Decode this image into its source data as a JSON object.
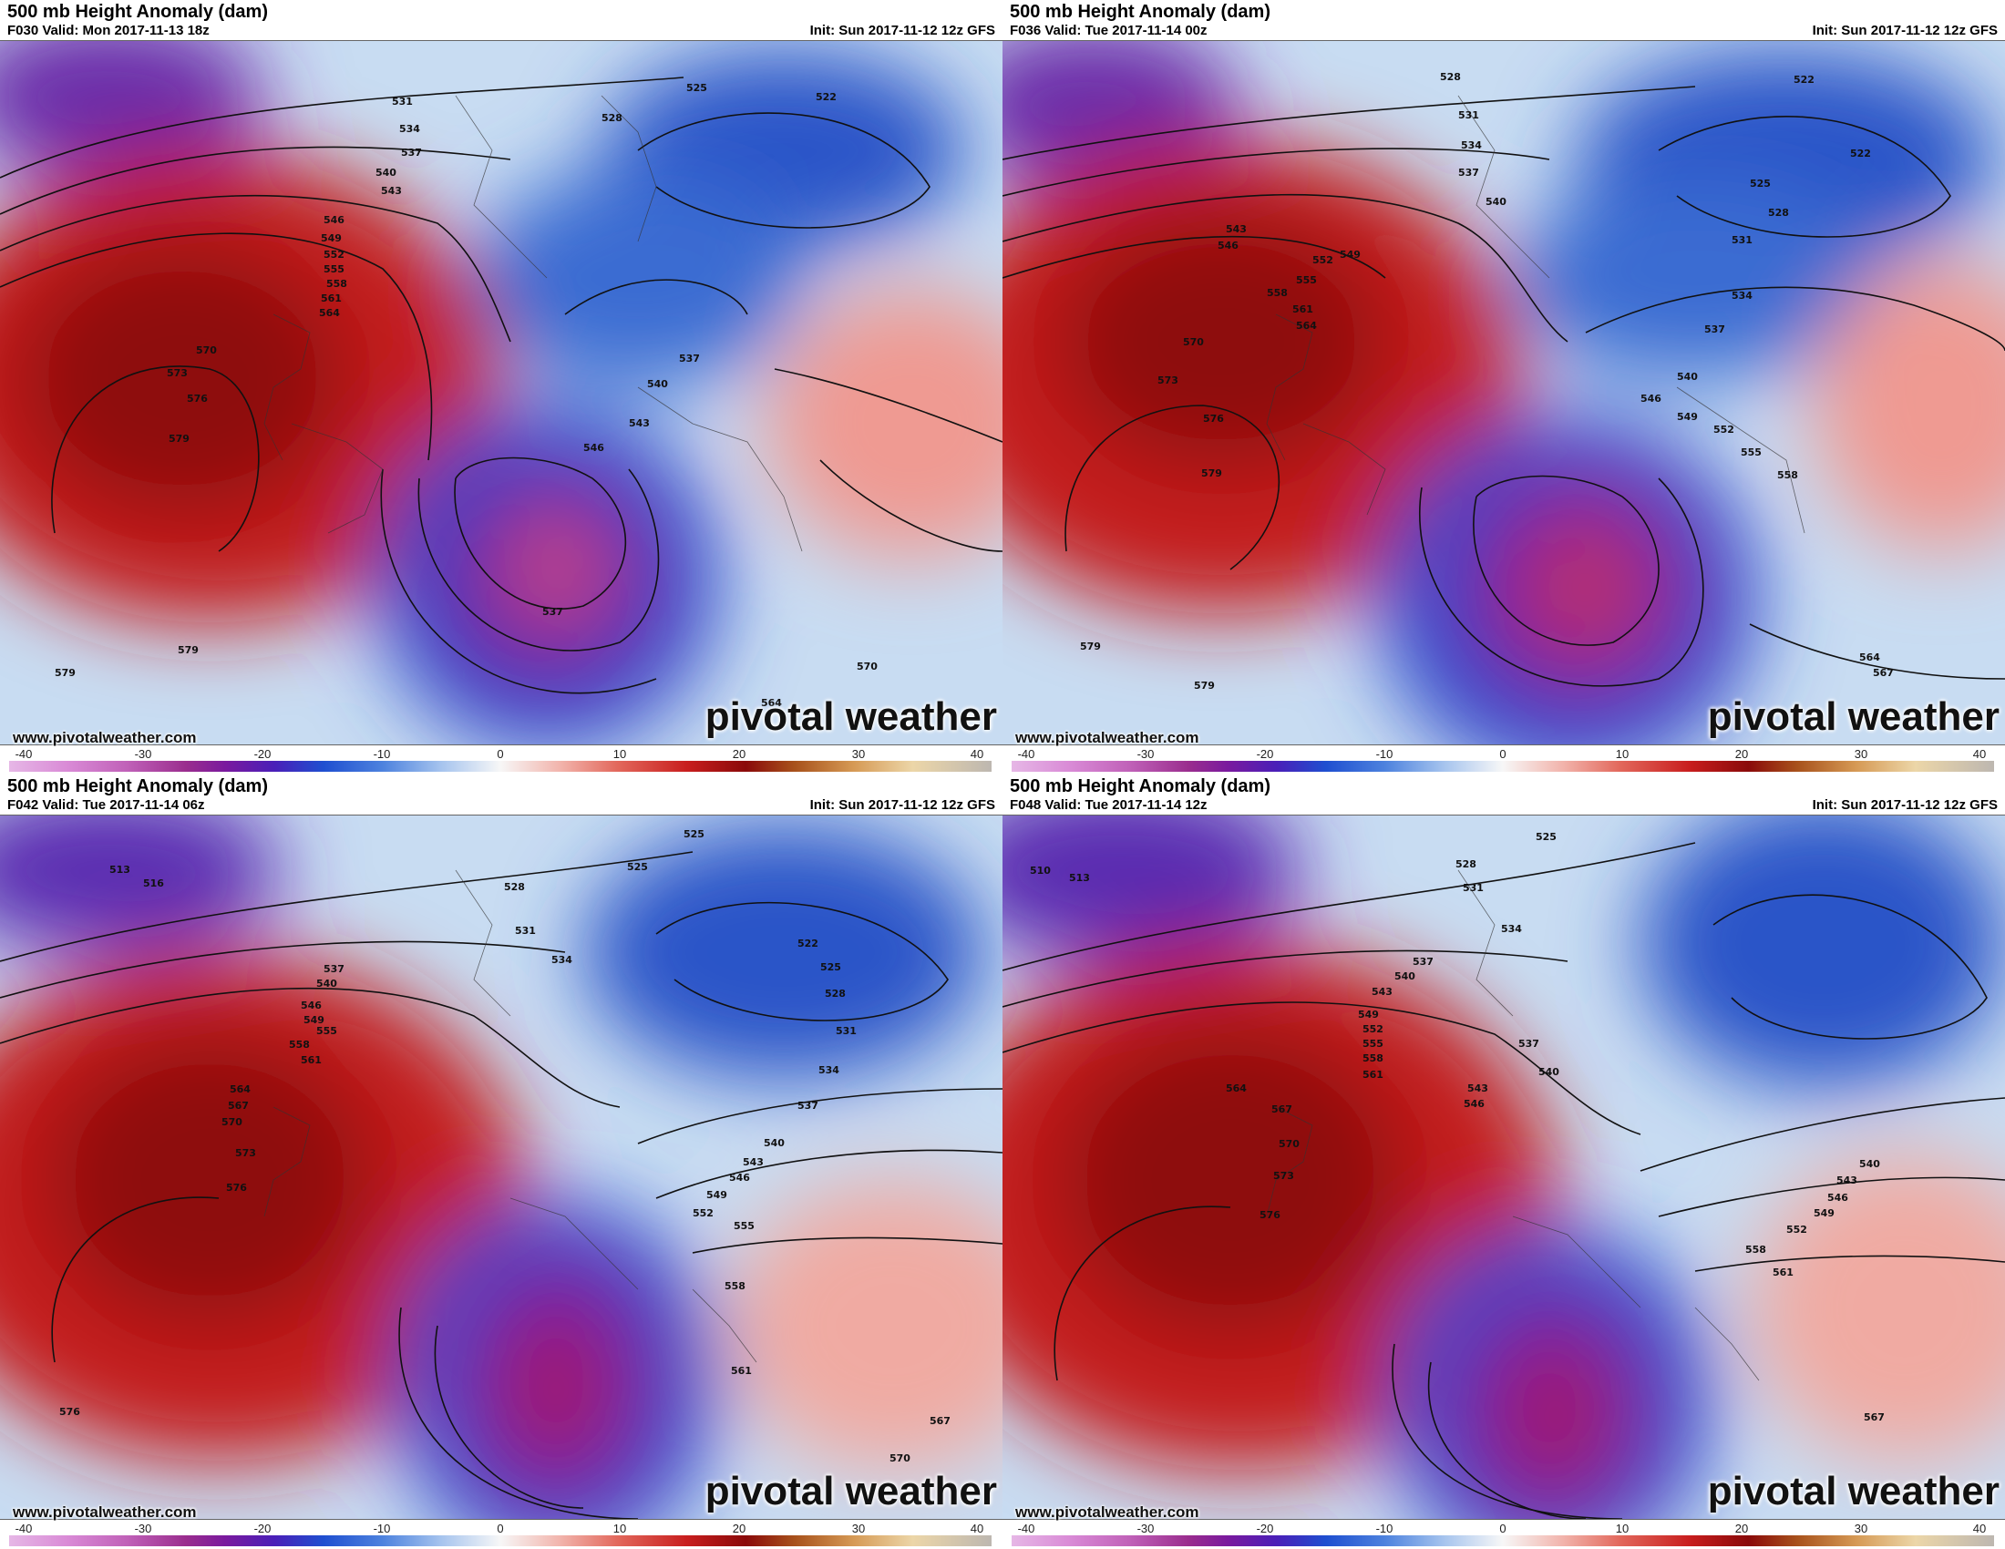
{
  "panels": [
    {
      "title": "500 mb Height Anomaly (dam)",
      "valid": "F030 Valid: Mon 2017-11-13 18z",
      "init": "Init: Sun 2017-11-12 12z GFS",
      "url": "www.pivotalweather.com",
      "brand": "pivotal weather",
      "contour_labels": [
        "531",
        "534",
        "537",
        "540",
        "543",
        "546",
        "549",
        "552",
        "555",
        "558",
        "561",
        "564",
        "570",
        "573",
        "576",
        "579",
        "525",
        "522",
        "528",
        "537",
        "540",
        "543",
        "546",
        "537",
        "564",
        "570"
      ]
    },
    {
      "title": "500 mb Height Anomaly (dam)",
      "valid": "F036 Valid: Tue 2017-11-14 00z",
      "init": "Init: Sun 2017-11-12 12z GFS",
      "url": "www.pivotalweather.com",
      "brand": "pivotal weather",
      "contour_labels": [
        "528",
        "531",
        "534",
        "537",
        "540",
        "543",
        "546",
        "549",
        "552",
        "555",
        "558",
        "561",
        "564",
        "570",
        "573",
        "576",
        "579",
        "522",
        "525",
        "528",
        "531",
        "534",
        "537",
        "540",
        "546",
        "549",
        "552",
        "555",
        "558",
        "564",
        "567"
      ]
    },
    {
      "title": "500 mb Height Anomaly (dam)",
      "valid": "F042 Valid: Tue 2017-11-14 06z",
      "init": "Init: Sun 2017-11-12 12z GFS",
      "url": "www.pivotalweather.com",
      "brand": "pivotal weather",
      "contour_labels": [
        "513",
        "516",
        "528",
        "531",
        "534",
        "537",
        "540",
        "543",
        "546",
        "549",
        "555",
        "558",
        "561",
        "564",
        "567",
        "570",
        "573",
        "576",
        "525",
        "522",
        "525",
        "528",
        "531",
        "534",
        "537",
        "540",
        "543",
        "546",
        "549",
        "552",
        "555",
        "558",
        "561",
        "567",
        "570"
      ]
    },
    {
      "title": "500 mb Height Anomaly (dam)",
      "valid": "F048 Valid: Tue 2017-11-14 12z",
      "init": "Init: Sun 2017-11-12 12z GFS",
      "url": "www.pivotalweather.com",
      "brand": "pivotal weather",
      "contour_labels": [
        "510",
        "513",
        "525",
        "528",
        "531",
        "534",
        "537",
        "540",
        "543",
        "546",
        "549",
        "552",
        "555",
        "558",
        "561",
        "564",
        "567",
        "570",
        "573",
        "576",
        "540",
        "543",
        "546",
        "549",
        "552",
        "555",
        "558",
        "561",
        "567"
      ]
    }
  ],
  "colorbar": {
    "ticks": [
      "-40",
      "-30",
      "-20",
      "-10",
      "0",
      "10",
      "20",
      "30",
      "40"
    ],
    "range": [
      -40,
      40
    ]
  }
}
